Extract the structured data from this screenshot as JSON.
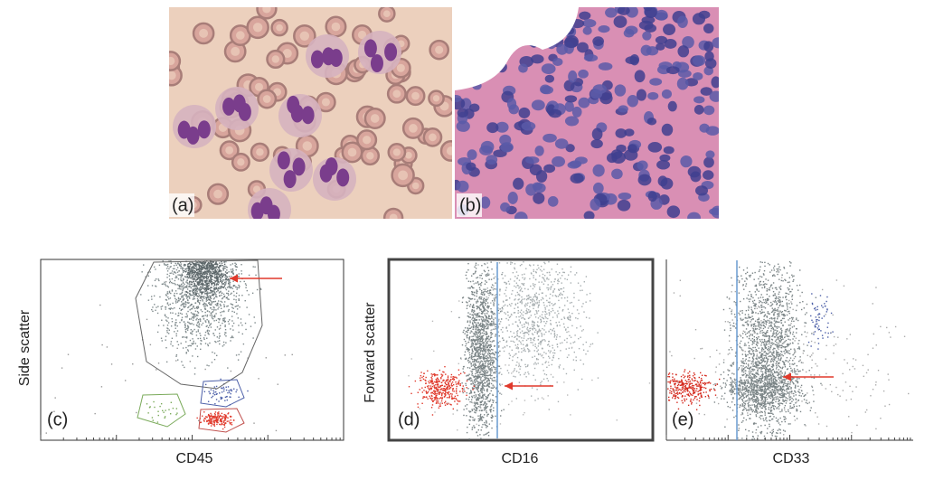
{
  "figure": {
    "panels": [
      {
        "label": "(a)"
      },
      {
        "label": "(b)"
      },
      {
        "label": "(c)",
        "x_label": "CD45",
        "y_label": "Side scatter"
      },
      {
        "label": "(d)",
        "x_label": "CD16",
        "y_label": "Forward scatter"
      },
      {
        "label": "(e)",
        "x_label": "CD33"
      }
    ]
  }
}
